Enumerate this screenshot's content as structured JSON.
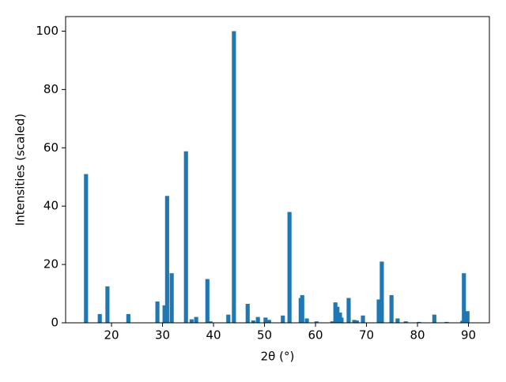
{
  "chart_data": {
    "type": "bar",
    "xlabel": "2θ (°)",
    "ylabel": "Intensities (scaled)",
    "color": "#1f77b4",
    "x": [
      15.0,
      17.7,
      19.2,
      23.3,
      29.0,
      30.4,
      30.9,
      31.8,
      34.6,
      35.7,
      36.6,
      38.8,
      39.4,
      42.9,
      44.0,
      46.7,
      47.8,
      48.7,
      50.2,
      50.9,
      53.6,
      54.9,
      57.1,
      57.4,
      58.3,
      60.2,
      63.3,
      63.9,
      64.3,
      64.8,
      65.1,
      66.5,
      67.6,
      68.1,
      69.3,
      72.4,
      73.0,
      74.9,
      76.1,
      77.7,
      80.3,
      83.3,
      85.7,
      88.8,
      89.1,
      89.8
    ],
    "values": [
      51,
      3,
      12.5,
      3,
      7.3,
      6,
      43.5,
      17,
      58.8,
      1.2,
      2,
      15,
      0.5,
      2.8,
      100,
      6.5,
      0.8,
      2,
      1.8,
      1,
      2.5,
      38,
      8.5,
      9.5,
      1.5,
      0.5,
      0.5,
      7,
      5.5,
      3.5,
      1.8,
      8.5,
      1,
      0.8,
      2.5,
      8,
      21,
      9.5,
      1.5,
      0.5,
      0.3,
      2.8,
      0.3,
      0.7,
      17,
      4
    ],
    "xlim": [
      11.0,
      94.1
    ],
    "ylim": [
      0,
      105
    ],
    "xticks": [
      20,
      30,
      40,
      50,
      60,
      70,
      80,
      90
    ],
    "yticks": [
      0,
      20,
      40,
      60,
      80,
      100
    ]
  }
}
